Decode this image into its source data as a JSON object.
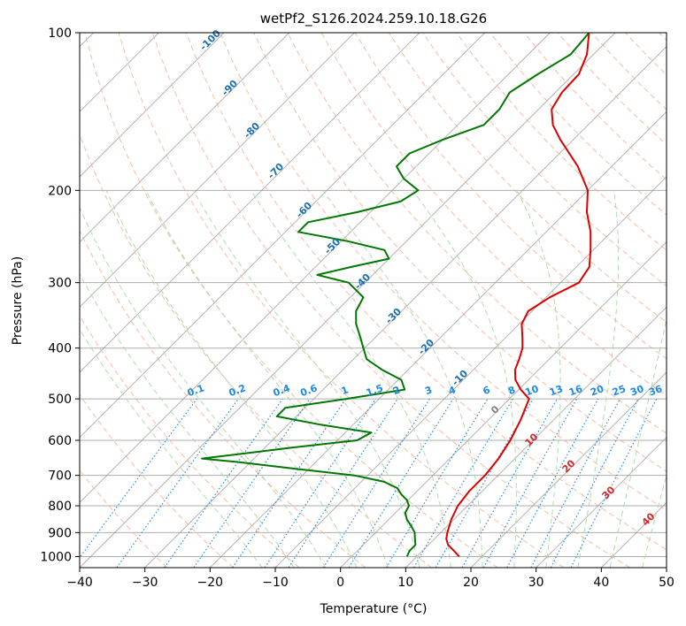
{
  "chart_data": {
    "type": "line",
    "title": "wetPf2_S126.2024.259.10.18.G26",
    "xlabel": "Temperature (°C)",
    "ylabel": "Pressure (hPa)",
    "xlim": [
      -40,
      50
    ],
    "ylim": [
      1050,
      100
    ],
    "yscale": "log",
    "skew": 45,
    "grid": true,
    "x_ticks": [
      -40,
      -30,
      -20,
      -10,
      0,
      10,
      20,
      30,
      40,
      50
    ],
    "y_ticks": [
      100,
      200,
      300,
      400,
      500,
      600,
      700,
      800,
      900,
      1000
    ],
    "series": [
      {
        "color": "#dd0000",
        "p": [
          1000,
          975,
          950,
          925,
          900,
          850,
          800,
          750,
          700,
          650,
          600,
          550,
          500,
          480,
          460,
          440,
          420,
          400,
          380,
          360,
          340,
          320,
          300,
          280,
          260,
          240,
          220,
          200,
          180,
          160,
          150,
          140,
          130,
          120,
          110,
          100
        ],
        "t": [
          16.5,
          14.8,
          13.0,
          11.8,
          11.0,
          9.6,
          8.5,
          8.0,
          8.0,
          7.5,
          6.5,
          5.0,
          3.0,
          0.3,
          -2.0,
          -3.6,
          -4.6,
          -5.8,
          -7.6,
          -9.6,
          -10.6,
          -9.4,
          -7.2,
          -8.0,
          -10.4,
          -13.2,
          -16.8,
          -20.0,
          -25.2,
          -32.0,
          -35.4,
          -38.0,
          -39.0,
          -39.2,
          -41.0,
          -44.0
        ]
      },
      {
        "color": "#007700",
        "p": [
          1000,
          975,
          950,
          925,
          900,
          875,
          850,
          825,
          800,
          780,
          760,
          740,
          720,
          700,
          680,
          660,
          650,
          640,
          620,
          600,
          580,
          560,
          540,
          520,
          500,
          480,
          460,
          440,
          420,
          400,
          380,
          360,
          340,
          320,
          300,
          290,
          280,
          270,
          260,
          250,
          240,
          230,
          220,
          210,
          200,
          190,
          180,
          170,
          160,
          150,
          140,
          130,
          120,
          110,
          100
        ],
        "t": [
          8.5,
          8.0,
          8.0,
          7.0,
          6.0,
          4.5,
          2.8,
          1.5,
          1.0,
          -0.2,
          -2.0,
          -3.5,
          -6.5,
          -12.0,
          -22.0,
          -32.0,
          -38.0,
          -34.0,
          -26.0,
          -17.0,
          -16.0,
          -25.0,
          -33.0,
          -33.0,
          -25.0,
          -17.5,
          -19.5,
          -24.0,
          -28.0,
          -30.2,
          -32.5,
          -35.0,
          -37.0,
          -38.0,
          -42.5,
          -48.5,
          -44.5,
          -40.0,
          -42.0,
          -49.0,
          -58.0,
          -58.0,
          -52.0,
          -47.0,
          -46.0,
          -50.0,
          -53.0,
          -53.0,
          -50.0,
          -46.0,
          -46.0,
          -47.0,
          -45.5,
          -43.5,
          -44.0
        ]
      }
    ],
    "mixing_ratio_labels": [
      "0.1",
      "0.2",
      "0.4",
      "0.6",
      "1",
      "1.5",
      "2",
      "3",
      "4",
      "6",
      "8",
      "10",
      "13",
      "16",
      "20",
      "25",
      "30",
      "36"
    ],
    "mixing_ratio_values": [
      0.1,
      0.2,
      0.4,
      0.6,
      1,
      1.5,
      2,
      3,
      4,
      6,
      8,
      10,
      13,
      16,
      20,
      25,
      30,
      36
    ],
    "dry_adiabat_labels": [
      "-100",
      "-90",
      "-80",
      "-70",
      "-60",
      "-50",
      "-40",
      "-30",
      "-20",
      "-10"
    ],
    "dry_adiabat_values": [
      -100,
      -90,
      -80,
      -70,
      -60,
      -50,
      -40,
      -30,
      -20,
      -10
    ],
    "moist_adiabat_labels": [
      "0",
      "10",
      "20",
      "30",
      "40"
    ],
    "moist_adiabat_values": [
      0,
      10,
      20,
      30,
      40
    ],
    "colors": {
      "temperature": "#dd0000",
      "dewpoint": "#007700",
      "isotherm": "#8c8c8c",
      "dry_adiabat": "#f4a582",
      "moist_adiabat": "#a6d8a6",
      "mixing_ratio": "#1e88e5",
      "dry_adiabat_label": "#1f6fb0",
      "moist_adiabat_label": "#d62728"
    }
  }
}
